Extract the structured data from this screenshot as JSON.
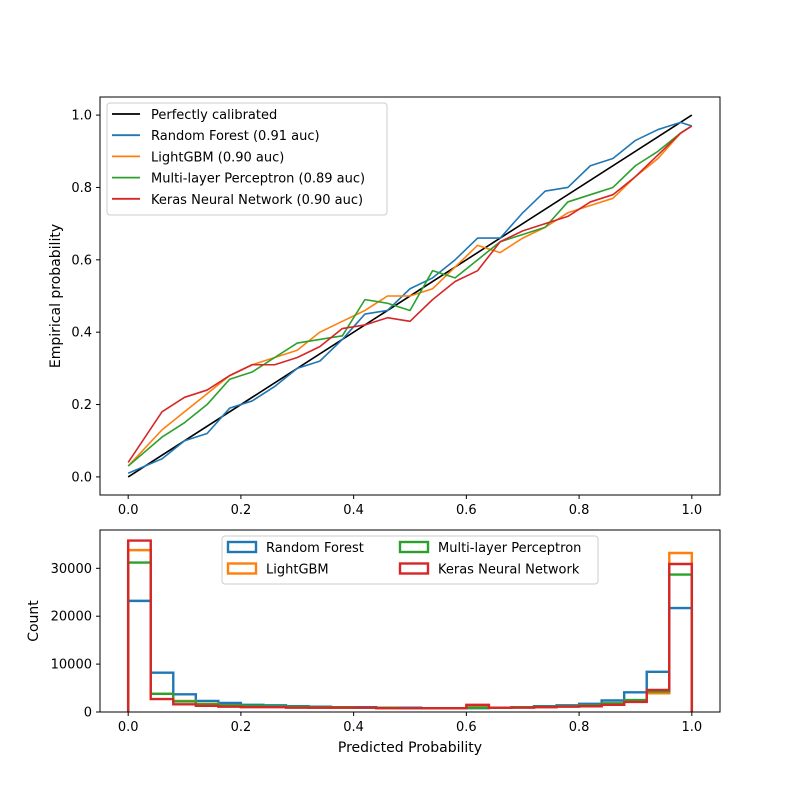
{
  "chart_data": [
    {
      "type": "line",
      "title": "",
      "xlabel": "",
      "ylabel": "Empirical probability",
      "xlim": [
        -0.05,
        1.05
      ],
      "ylim": [
        -0.05,
        1.05
      ],
      "xticks": [
        0.0,
        0.2,
        0.4,
        0.6,
        0.8,
        1.0
      ],
      "yticks": [
        0.0,
        0.2,
        0.4,
        0.6,
        0.8,
        1.0
      ],
      "xtick_labels": [
        "0.0",
        "0.2",
        "0.4",
        "0.6",
        "0.8",
        "1.0"
      ],
      "ytick_labels": [
        "0.0",
        "0.2",
        "0.4",
        "0.6",
        "0.8",
        "1.0"
      ],
      "grid": false,
      "legend_position": "upper-left",
      "series": [
        {
          "name": "Perfectly calibrated",
          "color": "#000000",
          "x": [
            0,
            1
          ],
          "y": [
            0,
            1
          ]
        },
        {
          "name": "Random Forest (0.91 auc)",
          "color": "#1f77b4",
          "x": [
            0.0,
            0.06,
            0.1,
            0.14,
            0.18,
            0.22,
            0.26,
            0.3,
            0.34,
            0.38,
            0.42,
            0.46,
            0.5,
            0.54,
            0.58,
            0.62,
            0.66,
            0.7,
            0.74,
            0.78,
            0.82,
            0.86,
            0.9,
            0.94,
            0.98,
            1.0
          ],
          "y": [
            0.01,
            0.05,
            0.1,
            0.12,
            0.19,
            0.21,
            0.25,
            0.3,
            0.32,
            0.38,
            0.45,
            0.46,
            0.52,
            0.55,
            0.6,
            0.66,
            0.66,
            0.73,
            0.79,
            0.8,
            0.86,
            0.88,
            0.93,
            0.96,
            0.98,
            0.97
          ]
        },
        {
          "name": "LightGBM (0.90 auc)",
          "color": "#ff7f0e",
          "x": [
            0.0,
            0.06,
            0.1,
            0.14,
            0.18,
            0.22,
            0.26,
            0.3,
            0.34,
            0.38,
            0.42,
            0.46,
            0.5,
            0.54,
            0.58,
            0.62,
            0.66,
            0.7,
            0.74,
            0.78,
            0.82,
            0.86,
            0.9,
            0.94,
            0.98,
            1.0
          ],
          "y": [
            0.03,
            0.13,
            0.18,
            0.23,
            0.28,
            0.31,
            0.33,
            0.35,
            0.4,
            0.43,
            0.46,
            0.5,
            0.5,
            0.52,
            0.58,
            0.64,
            0.62,
            0.66,
            0.69,
            0.73,
            0.75,
            0.77,
            0.83,
            0.88,
            0.95,
            0.97
          ]
        },
        {
          "name": "Multi-layer Perceptron (0.89 auc)",
          "color": "#2ca02c",
          "x": [
            0.0,
            0.06,
            0.1,
            0.14,
            0.18,
            0.22,
            0.26,
            0.3,
            0.34,
            0.38,
            0.42,
            0.46,
            0.5,
            0.54,
            0.58,
            0.62,
            0.66,
            0.7,
            0.74,
            0.78,
            0.82,
            0.86,
            0.9,
            0.94,
            0.98,
            1.0
          ],
          "y": [
            0.03,
            0.11,
            0.15,
            0.2,
            0.27,
            0.29,
            0.33,
            0.37,
            0.38,
            0.39,
            0.49,
            0.48,
            0.46,
            0.57,
            0.55,
            0.6,
            0.65,
            0.67,
            0.69,
            0.76,
            0.78,
            0.8,
            0.86,
            0.9,
            0.95,
            0.97
          ]
        },
        {
          "name": "Keras Neural Network (0.90 auc)",
          "color": "#d62728",
          "x": [
            0.0,
            0.06,
            0.1,
            0.14,
            0.18,
            0.22,
            0.26,
            0.3,
            0.34,
            0.38,
            0.42,
            0.46,
            0.5,
            0.54,
            0.58,
            0.62,
            0.66,
            0.7,
            0.74,
            0.78,
            0.82,
            0.86,
            0.9,
            0.94,
            0.98,
            1.0
          ],
          "y": [
            0.04,
            0.18,
            0.22,
            0.24,
            0.28,
            0.31,
            0.31,
            0.33,
            0.36,
            0.41,
            0.42,
            0.44,
            0.43,
            0.49,
            0.54,
            0.57,
            0.65,
            0.68,
            0.7,
            0.72,
            0.76,
            0.78,
            0.83,
            0.89,
            0.95,
            0.97
          ]
        }
      ]
    },
    {
      "type": "bar",
      "subtype": "step-histogram",
      "title": "",
      "xlabel": "Predicted Probability",
      "ylabel": "Count",
      "xlim": [
        -0.05,
        1.05
      ],
      "ylim": [
        0,
        38000
      ],
      "xticks": [
        0.0,
        0.2,
        0.4,
        0.6,
        0.8,
        1.0
      ],
      "yticks": [
        0,
        10000,
        20000,
        30000
      ],
      "xtick_labels": [
        "0.0",
        "0.2",
        "0.4",
        "0.6",
        "0.8",
        "1.0"
      ],
      "ytick_labels": [
        "0",
        "10000",
        "20000",
        "30000"
      ],
      "grid": false,
      "legend_position": "upper-center",
      "legend_columns": 2,
      "bin_edges": [
        0.0,
        0.04,
        0.08,
        0.12,
        0.16,
        0.2,
        0.24,
        0.28,
        0.32,
        0.36,
        0.4,
        0.44,
        0.48,
        0.52,
        0.56,
        0.6,
        0.64,
        0.68,
        0.72,
        0.76,
        0.8,
        0.84,
        0.88,
        0.92,
        0.96,
        1.0
      ],
      "series": [
        {
          "name": "Random Forest",
          "color": "#1f77b4",
          "values": [
            23200,
            8200,
            3700,
            2300,
            1900,
            1500,
            1400,
            1200,
            1100,
            1000,
            1000,
            900,
            900,
            800,
            800,
            800,
            900,
            1000,
            1200,
            1400,
            1700,
            2400,
            4100,
            8400,
            21700
          ]
        },
        {
          "name": "LightGBM",
          "color": "#ff7f0e",
          "values": [
            33800,
            3800,
            2300,
            1700,
            1400,
            1200,
            1100,
            1000,
            900,
            900,
            900,
            800,
            800,
            800,
            800,
            1200,
            900,
            1000,
            1000,
            1200,
            1300,
            1600,
            2200,
            3900,
            33200
          ]
        },
        {
          "name": "Multi-layer Perceptron",
          "color": "#2ca02c",
          "values": [
            31200,
            3800,
            2200,
            1600,
            1400,
            1300,
            1200,
            1100,
            1000,
            1000,
            900,
            900,
            800,
            800,
            800,
            900,
            900,
            1000,
            1100,
            1200,
            1400,
            1800,
            2500,
            4300,
            28700
          ]
        },
        {
          "name": "Keras Neural Network",
          "color": "#d62728",
          "values": [
            35800,
            2700,
            1600,
            1300,
            1100,
            1000,
            1000,
            900,
            900,
            900,
            900,
            800,
            800,
            800,
            800,
            1500,
            900,
            900,
            1000,
            1100,
            1200,
            1500,
            2100,
            4600,
            30900
          ]
        }
      ]
    }
  ]
}
